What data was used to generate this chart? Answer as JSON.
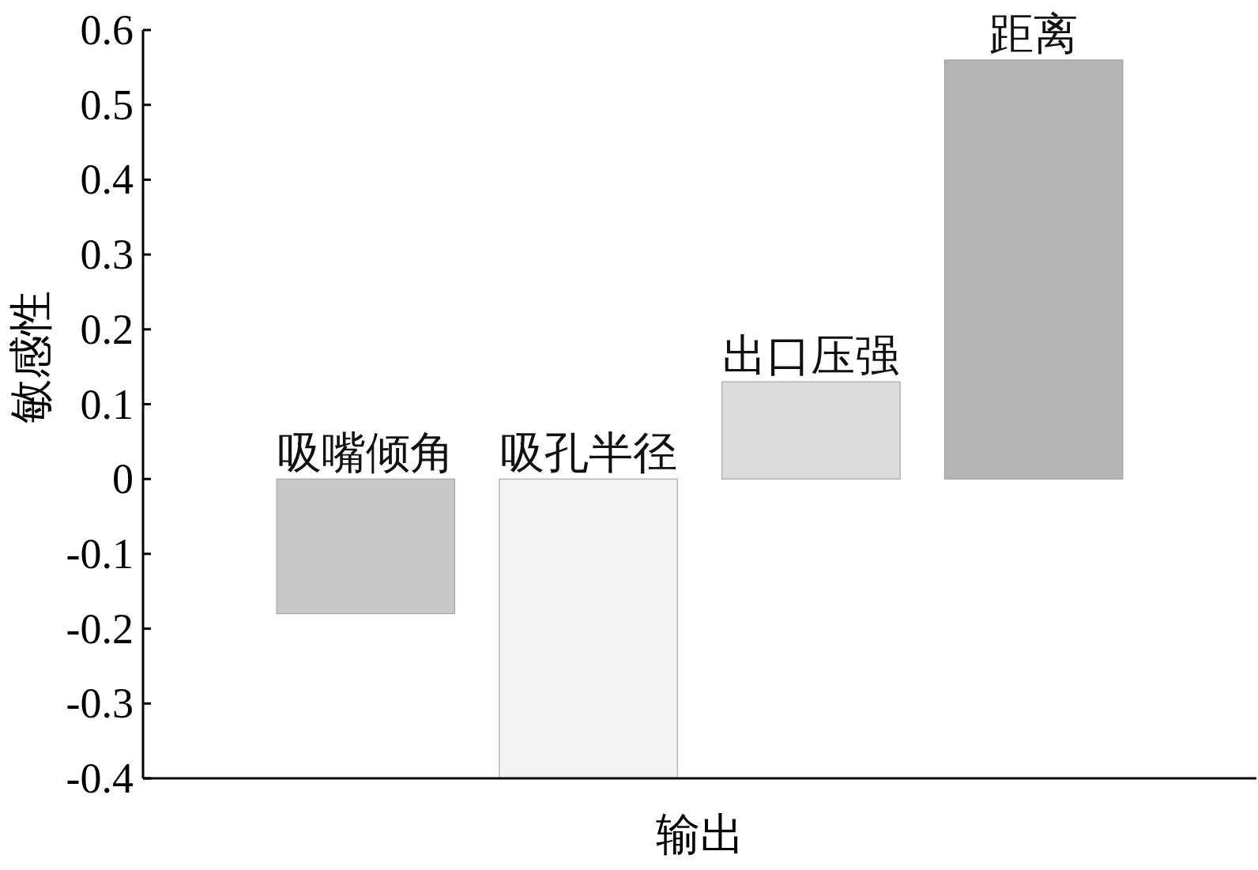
{
  "chart_data": {
    "type": "bar",
    "xlabel": "输出",
    "ylabel": "敏感性",
    "categories": [
      "吸嘴倾角",
      "吸孔半径",
      "出口压强",
      "距离"
    ],
    "values": [
      -0.18,
      -0.4,
      0.13,
      0.56
    ],
    "colors": [
      "#c8c8c8",
      "#f3f3f3",
      "#dcdcdc",
      "#b4b4b4"
    ],
    "ylim": [
      -0.4,
      0.6
    ],
    "yticks": [
      -0.4,
      -0.3,
      -0.2,
      -0.1,
      0,
      0.1,
      0.2,
      0.3,
      0.4,
      0.5,
      0.6
    ],
    "tick_labels": "y"
  }
}
